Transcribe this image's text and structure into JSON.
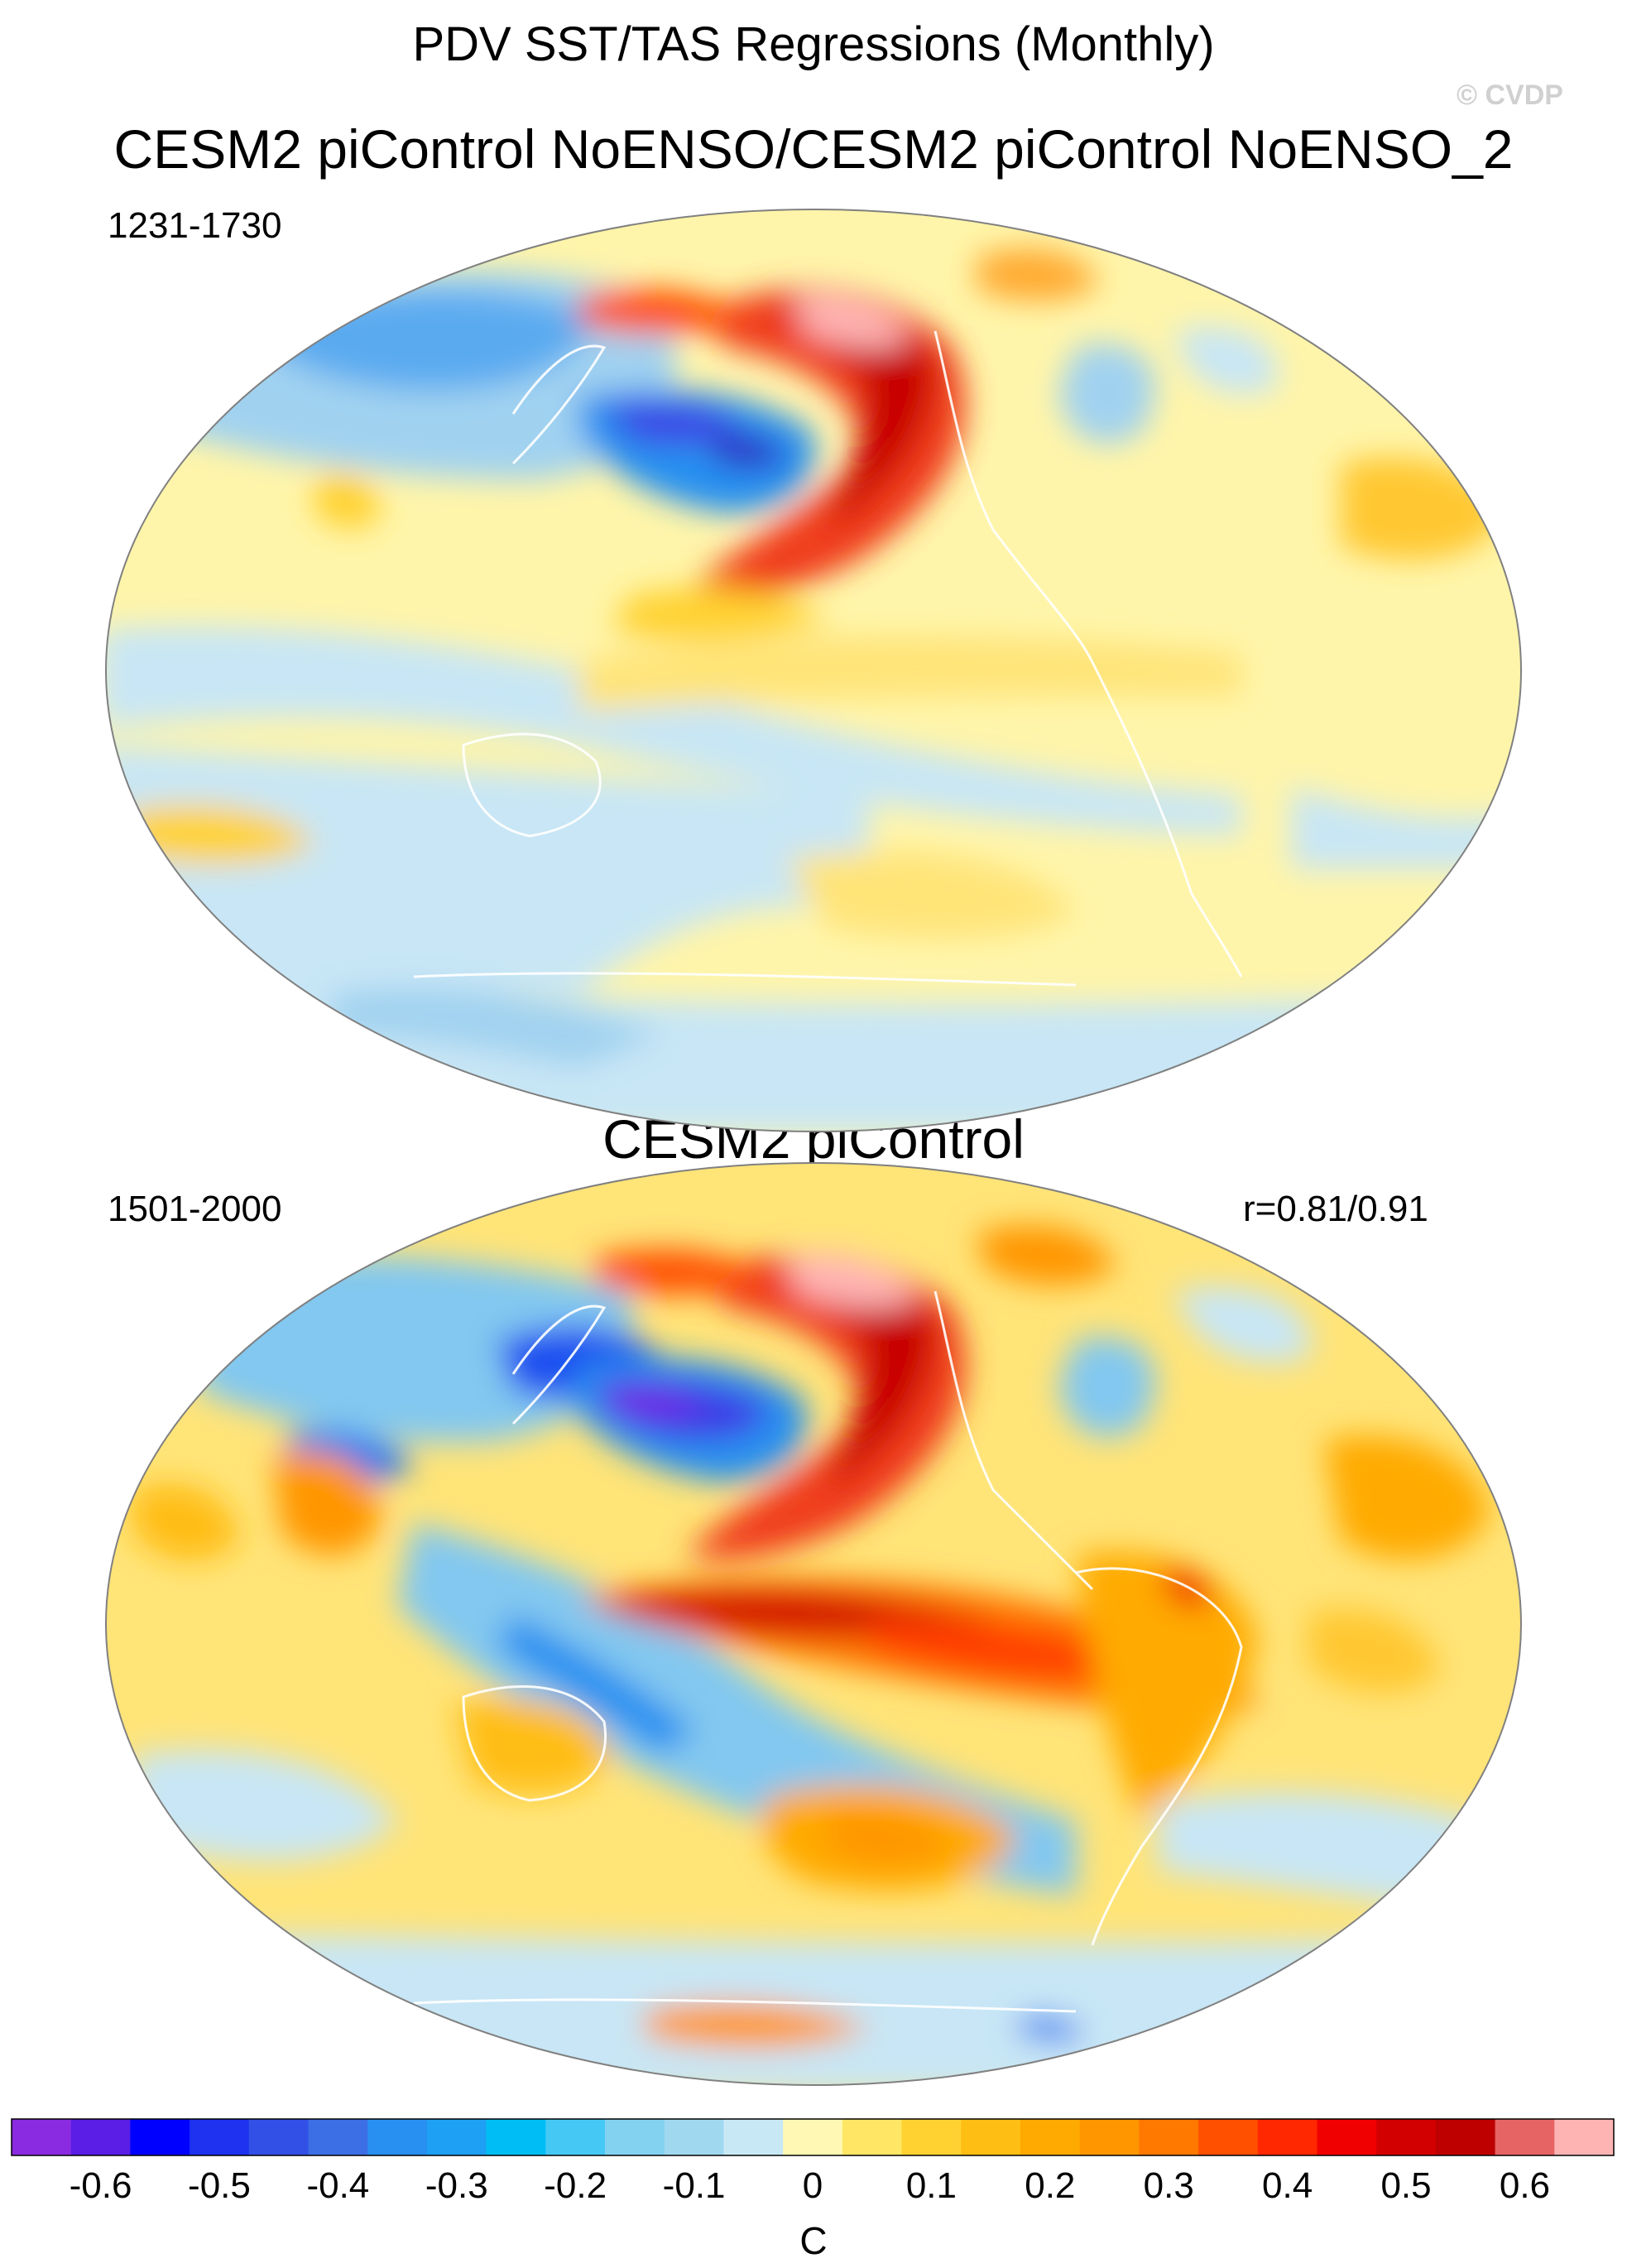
{
  "figure": {
    "title": "PDV SST/TAS Regressions (Monthly)",
    "watermark": "© CVDP",
    "units": "C"
  },
  "panels": [
    {
      "title": "CESM2 piControl NoENSO/CESM2 piControl NoENSO_2",
      "period": "1231-1730",
      "stat": ""
    },
    {
      "title": "CESM2 piControl",
      "period": "1501-2000",
      "stat": "r=0.81/0.91"
    }
  ],
  "colorbar": {
    "tick_labels": [
      "-0.6",
      "-0.5",
      "-0.4",
      "-0.3",
      "-0.2",
      "-0.1",
      "0",
      "0.1",
      "0.2",
      "0.3",
      "0.4",
      "0.5",
      "0.6"
    ],
    "colors": [
      "#8a2be2",
      "#5a1ee6",
      "#0000ff",
      "#1e32f0",
      "#3250e6",
      "#3c6ee6",
      "#2890f0",
      "#1ea0f5",
      "#00bef5",
      "#46c8f5",
      "#82d2f0",
      "#a0d8f0",
      "#c8e8f5",
      "#fff8b4",
      "#ffe664",
      "#ffd232",
      "#ffbe14",
      "#ffaa00",
      "#ff9600",
      "#ff7800",
      "#ff5000",
      "#ff2800",
      "#f00000",
      "#d20000",
      "#be0000",
      "#e66464",
      "#ffb4b4"
    ]
  },
  "map_colors": {
    "ocean_neutral_warm": "#fff5aa",
    "ocean_neutral_cool": "#c8e6f5"
  }
}
